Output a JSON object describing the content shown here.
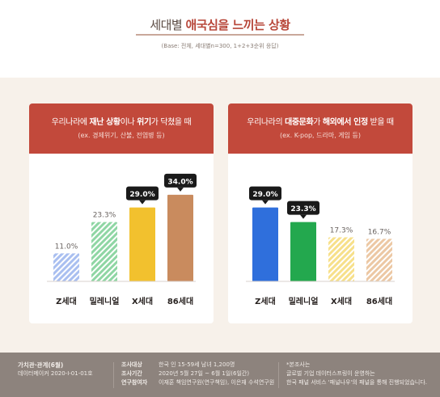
{
  "header": {
    "title_pre": "세대별 ",
    "title_hl": "애국심을 느끼는 상황",
    "base": "(Base: 전체, 세대별n=300, 1+2+3순위 응답)"
  },
  "colors": {
    "accent": "#c2493b",
    "z": "#a9bff0",
    "millennial": "#8fd6a4",
    "x": "#f2c12e",
    "s86": "#c98b5e",
    "z_solid": "#2f6fdc",
    "millennial_solid": "#23a84e",
    "x_light": "#f7e08a",
    "s86_light": "#ecc8a4",
    "badge": "#1a1a1a"
  },
  "chart_data": [
    {
      "type": "bar",
      "header_parts": [
        "우리나라에 ",
        "재난 상황",
        "이나 ",
        "위기",
        "가 닥쳤을 때"
      ],
      "subheader": "(ex. 경제위기, 산불, 전염병 등)",
      "categories": [
        "Z세대",
        "밀레니얼",
        "X세대",
        "86세대"
      ],
      "values": [
        11.0,
        23.3,
        29.0,
        34.0
      ],
      "labels": [
        "11.0%",
        "23.3%",
        "29.0%",
        "34.0%"
      ],
      "highlighted": [
        false,
        false,
        true,
        true
      ],
      "bar_colors": [
        "#a9bff0",
        "#8fd6a4",
        "#f2c12e",
        "#c98b5e"
      ],
      "hatched": [
        true,
        true,
        false,
        false
      ]
    },
    {
      "type": "bar",
      "header_parts": [
        "우리나라의 ",
        "대중문화",
        "가 ",
        "해외에서 인정",
        " 받을 때"
      ],
      "subheader": "(ex. K-pop, 드라마, 게임 등)",
      "categories": [
        "Z세대",
        "밀레니얼",
        "X세대",
        "86세대"
      ],
      "values": [
        29.0,
        23.3,
        17.3,
        16.7
      ],
      "labels": [
        "29.0%",
        "23.3%",
        "17.3%",
        "16.7%"
      ],
      "highlighted": [
        true,
        true,
        false,
        false
      ],
      "bar_colors": [
        "#2f6fdc",
        "#23a84e",
        "#f7e08a",
        "#ecc8a4"
      ],
      "hatched": [
        false,
        false,
        true,
        true
      ]
    }
  ],
  "footer": {
    "org": "가치관·관계(6월)",
    "code": "데이터메이커 2020-I-01-01호",
    "target_k": "조사대상",
    "target_v": "한국 인 15-59세 남녀 1,200명",
    "period_k": "조사기간",
    "period_v": "2020년 5월 27일 ~ 6월 1일(6일간)",
    "staff_k": "연구참여자",
    "staff_v": "이재훈 책임연구원(연구책임), 이은재 수석연구원",
    "note1": "*본조사는",
    "note2": "글로벌 기업 데이터스프링이 운영하는",
    "note3": "한국 패널 서비스 '패널나우'의 패널을 통해 진행되었습니다."
  }
}
